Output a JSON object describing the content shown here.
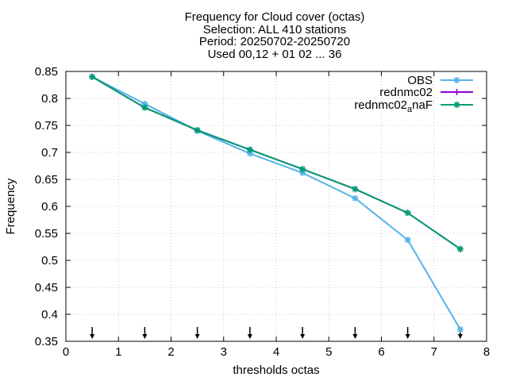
{
  "chart_data": {
    "type": "line",
    "title_lines": [
      "Frequency  for Cloud cover (octas)",
      "Selection: ALL    410 stations",
      "Period: 20250702-20250720",
      "Used 00,12 + 01 02 ... 36"
    ],
    "xlabel": "thresholds octas",
    "ylabel": "Frequency",
    "xlim": [
      0,
      8
    ],
    "ylim": [
      0.35,
      0.85
    ],
    "xticks": [
      "0",
      "1",
      "2",
      "3",
      "4",
      "5",
      "6",
      "7",
      "8"
    ],
    "yticks": [
      "0.35",
      "0.4",
      "0.45",
      "0.5",
      "0.55",
      "0.6",
      "0.65",
      "0.7",
      "0.75",
      "0.8",
      "0.85"
    ],
    "grid": true,
    "legend_position": "top-right",
    "x": [
      0.5,
      1.5,
      2.5,
      3.5,
      4.5,
      5.5,
      6.5,
      7.5
    ],
    "series": [
      {
        "name": "OBS",
        "color": "#56b4e9",
        "marker": "star",
        "values": [
          0.84,
          0.79,
          0.74,
          0.698,
          0.662,
          0.615,
          0.538,
          0.372
        ]
      },
      {
        "name": "rednmc02",
        "color": "#9400d3",
        "marker": "plus",
        "values": [
          0.84,
          0.783,
          0.741,
          0.705,
          0.669,
          0.632,
          0.588,
          0.521
        ]
      },
      {
        "name": "rednmc02",
        "name_sub": "a",
        "name_suffix": "naF",
        "color": "#009e73",
        "marker": "star",
        "values": [
          0.84,
          0.783,
          0.741,
          0.705,
          0.669,
          0.632,
          0.588,
          0.521
        ]
      }
    ],
    "arrow_markers_x": [
      0.5,
      1.5,
      2.5,
      3.5,
      4.5,
      5.5,
      6.5,
      7.5
    ]
  }
}
